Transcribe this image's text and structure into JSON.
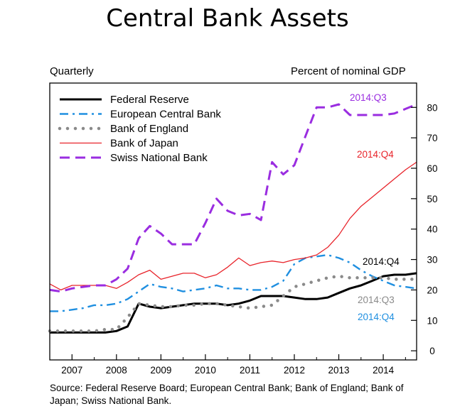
{
  "title": "Central Bank Assets",
  "header_left": "Quarterly",
  "header_right": "Percent of nominal GDP",
  "source": "Source:  Federal Reserve Board; European Central Bank; Bank of England; Bank of Japan; Swiss National Bank.",
  "chart_data": {
    "type": "line",
    "xlim": [
      2006.5,
      2014.75
    ],
    "ylim": [
      -3,
      88
    ],
    "x_ticks": [
      2007,
      2008,
      2009,
      2010,
      2011,
      2012,
      2013,
      2014
    ],
    "x_tick_labels": [
      "2007",
      "2008",
      "2009",
      "2010",
      "2011",
      "2012",
      "2013",
      "2014"
    ],
    "y_ticks": [
      0,
      10,
      20,
      30,
      40,
      50,
      60,
      70,
      80
    ],
    "y_tick_labels": [
      "0",
      "10",
      "20",
      "30",
      "40",
      "50",
      "60",
      "70",
      "80"
    ],
    "legend_position": "top-left",
    "grid": false,
    "series": [
      {
        "name": "Federal Reserve",
        "color": "#000000",
        "style": "solid-thick",
        "x": [
          2006.5,
          2006.75,
          2007,
          2007.25,
          2007.5,
          2007.75,
          2008,
          2008.25,
          2008.5,
          2008.75,
          2009,
          2009.25,
          2009.5,
          2009.75,
          2010,
          2010.25,
          2010.5,
          2010.75,
          2011,
          2011.25,
          2011.5,
          2011.75,
          2012,
          2012.25,
          2012.5,
          2012.75,
          2013,
          2013.25,
          2013.5,
          2013.75,
          2014,
          2014.25,
          2014.5,
          2014.75
        ],
        "values": [
          6,
          6,
          6,
          6,
          6,
          6,
          6.5,
          8,
          15.5,
          14.5,
          14,
          14.5,
          15,
          15.5,
          15.5,
          15.5,
          15,
          15.5,
          16.5,
          18,
          18,
          18,
          17.5,
          17,
          17,
          17.5,
          19,
          20.5,
          21.5,
          23,
          24.5,
          25,
          25,
          25.5
        ]
      },
      {
        "name": "European Central Bank",
        "color": "#1f8fe0",
        "style": "dash-dot",
        "x": [
          2006.5,
          2006.75,
          2007,
          2007.25,
          2007.5,
          2007.75,
          2008,
          2008.25,
          2008.5,
          2008.75,
          2009,
          2009.25,
          2009.5,
          2009.75,
          2010,
          2010.25,
          2010.5,
          2010.75,
          2011,
          2011.25,
          2011.5,
          2011.75,
          2012,
          2012.25,
          2012.5,
          2012.75,
          2013,
          2013.25,
          2013.5,
          2013.75,
          2014,
          2014.25,
          2014.5,
          2014.75
        ],
        "values": [
          13,
          13,
          13.5,
          14,
          15,
          15,
          15.5,
          17,
          19.5,
          22,
          21,
          20.5,
          19.5,
          20,
          20.5,
          21.5,
          20.5,
          20.5,
          20,
          20,
          21,
          23,
          28.5,
          30.5,
          31,
          31.5,
          30.5,
          29,
          26.5,
          24.5,
          23,
          21.5,
          21,
          20.5
        ]
      },
      {
        "name": "Bank of England",
        "color": "#8a8a8a",
        "style": "dotted",
        "x": [
          2006.5,
          2006.75,
          2007,
          2007.25,
          2007.5,
          2007.75,
          2008,
          2008.25,
          2008.5,
          2008.75,
          2009,
          2009.25,
          2009.5,
          2009.75,
          2010,
          2010.25,
          2010.5,
          2010.75,
          2011,
          2011.25,
          2011.5,
          2011.75,
          2012,
          2012.25,
          2012.5,
          2012.75,
          2013,
          2013.25,
          2013.5,
          2013.75,
          2014,
          2014.25,
          2014.5,
          2014.75
        ],
        "values": [
          6.5,
          6.5,
          6.5,
          6.5,
          6.5,
          7,
          7,
          11,
          15.5,
          15,
          14.5,
          14.5,
          15,
          15,
          15.5,
          15.5,
          15,
          14.5,
          14,
          14.5,
          15,
          18,
          21,
          22,
          23,
          24,
          24.5,
          24,
          24,
          24,
          24,
          23.5,
          23.5,
          23.5
        ]
      },
      {
        "name": "Bank of Japan",
        "color": "#e8232a",
        "style": "solid",
        "x": [
          2006.5,
          2006.75,
          2007,
          2007.25,
          2007.5,
          2007.75,
          2008,
          2008.25,
          2008.5,
          2008.75,
          2009,
          2009.25,
          2009.5,
          2009.75,
          2010,
          2010.25,
          2010.5,
          2010.75,
          2011,
          2011.25,
          2011.5,
          2011.75,
          2012,
          2012.25,
          2012.5,
          2012.75,
          2013,
          2013.25,
          2013.5,
          2013.75,
          2014,
          2014.25,
          2014.5,
          2014.75
        ],
        "values": [
          22,
          20,
          21.5,
          21.5,
          21.5,
          21.5,
          20.5,
          22.5,
          25,
          26.5,
          23.5,
          24.5,
          25.5,
          25.5,
          24,
          25,
          27.5,
          30.5,
          28,
          29,
          29.5,
          29,
          30,
          30.5,
          31.5,
          34,
          38,
          43.5,
          47.5,
          50.5,
          53.5,
          56.5,
          59.5,
          62
        ]
      },
      {
        "name": "Swiss National Bank",
        "color": "#9a2de0",
        "style": "dashed",
        "x": [
          2006.5,
          2006.75,
          2007,
          2007.25,
          2007.5,
          2007.75,
          2008,
          2008.25,
          2008.5,
          2008.75,
          2009,
          2009.25,
          2009.5,
          2009.75,
          2010,
          2010.25,
          2010.5,
          2010.75,
          2011,
          2011.25,
          2011.5,
          2011.75,
          2012,
          2012.25,
          2012.5,
          2012.75,
          2013,
          2013.25,
          2013.5,
          2013.75,
          2014,
          2014.25,
          2014.5,
          2014.75
        ],
        "values": [
          20,
          19.5,
          20.5,
          21,
          21.5,
          21.5,
          23.5,
          27,
          37,
          41,
          38.5,
          35,
          35,
          35,
          42,
          50,
          46,
          44.5,
          45,
          43,
          62,
          58,
          61,
          70.5,
          80,
          80,
          81,
          77.5,
          77.5,
          77.5,
          77.5,
          78,
          79.5,
          81
        ]
      }
    ],
    "annotations": [
      {
        "text": "2014:Q3",
        "series": "Swiss National Bank",
        "color": "#9a2de0"
      },
      {
        "text": "2014:Q4",
        "series": "Bank of Japan",
        "color": "#e8232a"
      },
      {
        "text": "2014:Q4",
        "series": "Federal Reserve",
        "color": "#000000"
      },
      {
        "text": "2014:Q3",
        "series": "Bank of England",
        "color": "#8a8a8a"
      },
      {
        "text": "2014:Q4",
        "series": "European Central Bank",
        "color": "#1f8fe0"
      }
    ]
  }
}
